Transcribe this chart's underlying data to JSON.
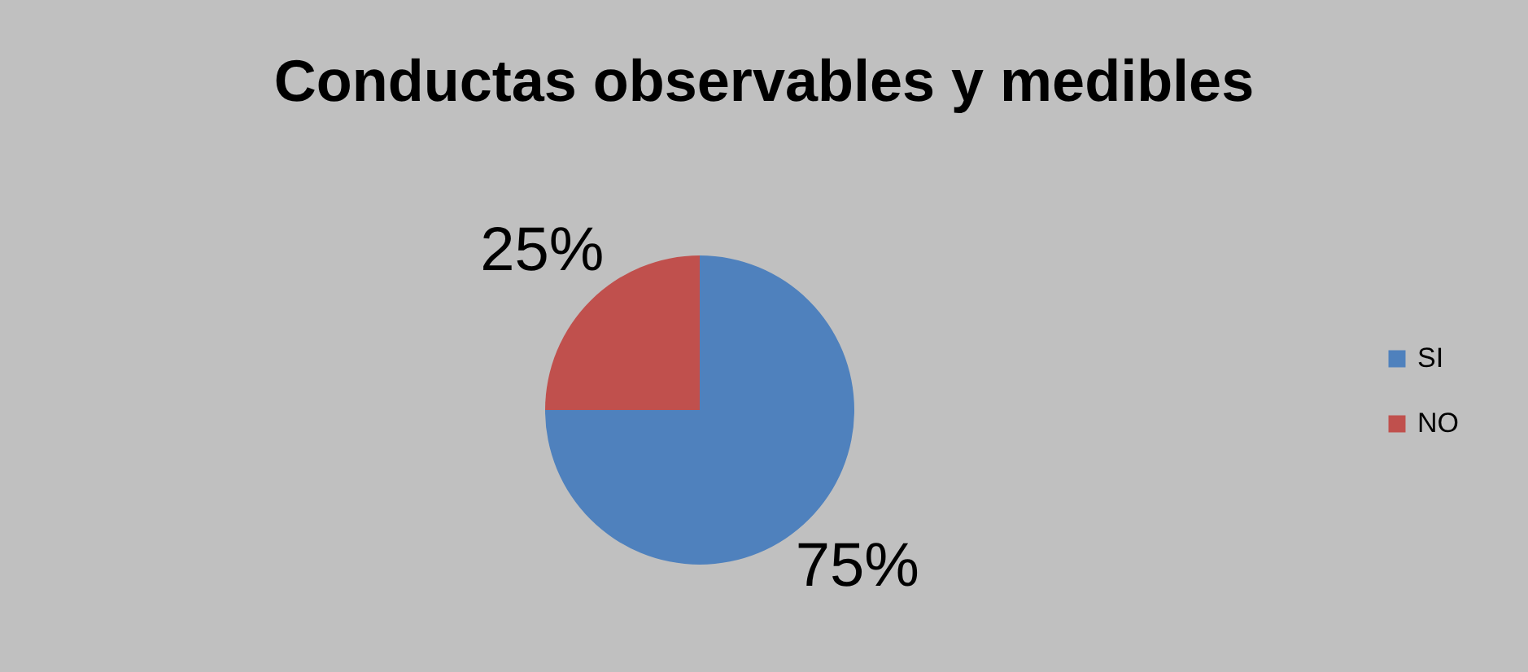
{
  "chart_data": {
    "type": "pie",
    "title": "Conductas observables y medibles",
    "categories": [
      "SI",
      "NO"
    ],
    "values": [
      75,
      25
    ],
    "colors": [
      "#4f81bd",
      "#c0504d"
    ],
    "value_labels": [
      "75%",
      "25%"
    ],
    "legend": "right"
  }
}
